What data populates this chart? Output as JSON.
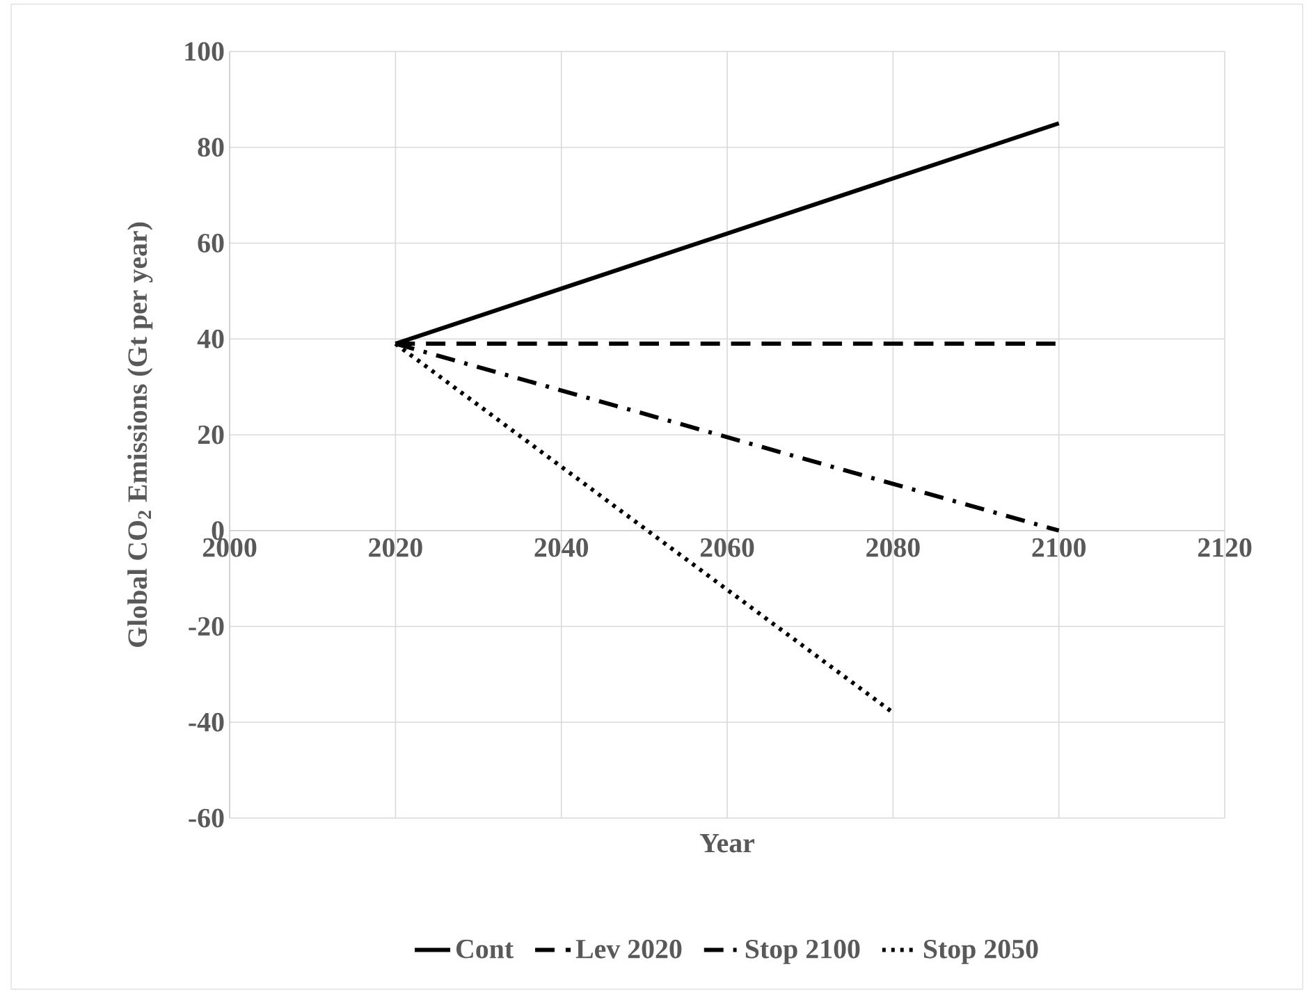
{
  "chart_data": {
    "type": "line",
    "xlabel": "Year",
    "ylabel": "Global CO$_{2}$ Emissions (Gt per year)",
    "xlim": [
      2000,
      2120
    ],
    "xticks": [
      2000,
      2020,
      2040,
      2060,
      2080,
      2100,
      2120
    ],
    "ylim": [
      -60,
      100
    ],
    "yticks": [
      -60,
      -40,
      -20,
      0,
      20,
      40,
      60,
      80,
      100
    ],
    "grid": true,
    "legend": "bottom",
    "series": [
      {
        "name": "Cont",
        "color": "#000000",
        "line_style": "solid",
        "x": [
          2020,
          2100
        ],
        "values": [
          39,
          85
        ]
      },
      {
        "name": "Lev 2020",
        "color": "#000000",
        "line_style": "dashed",
        "x": [
          2020,
          2100
        ],
        "values": [
          39,
          39
        ]
      },
      {
        "name": "Stop 2100",
        "color": "#000000",
        "line_style": "dashdot",
        "x": [
          2020,
          2100
        ],
        "values": [
          39,
          0
        ]
      },
      {
        "name": "Stop 2050",
        "color": "#000000",
        "line_style": "dotted",
        "x": [
          2020,
          2080
        ],
        "values": [
          39,
          -38
        ]
      }
    ]
  }
}
